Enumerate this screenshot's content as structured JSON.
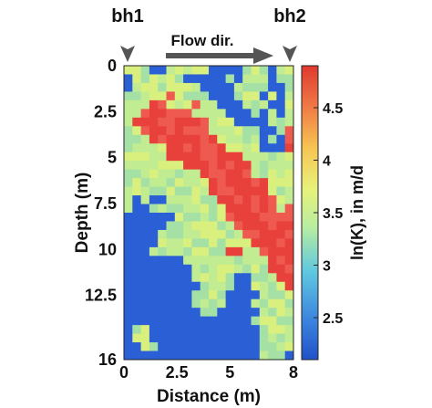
{
  "chart_data": {
    "type": "heatmap",
    "title": "",
    "xlabel": "Distance (m)",
    "ylabel": "Depth (m)",
    "colorbar_label": "ln(K), in m/d",
    "xlim": [
      0,
      8
    ],
    "ylim": [
      16,
      0
    ],
    "x_ticks": [
      {
        "value": 0,
        "label": "0"
      },
      {
        "value": 2.5,
        "label": "2.5"
      },
      {
        "value": 5,
        "label": "5"
      },
      {
        "value": 8,
        "label": "8"
      }
    ],
    "y_ticks": [
      {
        "value": 0,
        "label": "0"
      },
      {
        "value": 2.5,
        "label": "2.5"
      },
      {
        "value": 5,
        "label": "5"
      },
      {
        "value": 7.5,
        "label": "7.5"
      },
      {
        "value": 10,
        "label": "10"
      },
      {
        "value": 12.5,
        "label": "12.5"
      },
      {
        "value": 16,
        "label": "16"
      }
    ],
    "colorbar_range": [
      2.1,
      4.9
    ],
    "colorbar_ticks": [
      {
        "value": 2.5,
        "label": "2.5"
      },
      {
        "value": 3,
        "label": "3"
      },
      {
        "value": 3.5,
        "label": "3.5"
      },
      {
        "value": 4,
        "label": "4"
      },
      {
        "value": 4.5,
        "label": "4.5"
      }
    ],
    "colormap": [
      "#2151c9",
      "#3d86df",
      "#5fc8e0",
      "#b8eda0",
      "#e7f27a",
      "#f7c552",
      "#f07a45",
      "#e0392f"
    ],
    "grid_cells": {
      "x": 20,
      "y": 34
    },
    "value_levels": [
      2.35,
      3.1,
      3.2,
      3.3,
      4.6,
      4.75
    ],
    "level_colors": [
      "#2a5fd6",
      "#a5e1a5",
      "#c2ec91",
      "#d9ef7e",
      "#ee5a50",
      "#e8413c"
    ],
    "field": [
      "3 3 1 0 0 2 3 2 3 3 0 0 0 0 1 3 1 0 2 3",
      "0 3 1 3 2 3 1 0 0 0 0 0 1 0 2 2 2 0 1 1",
      "0 2 3 3 1 3 3 3 2 0 0 0 0 2 1 1 1 0 0 1",
      "1 1 2 3 3 4 3 1 1 1 0 0 0 1 3 3 0 3 0 2",
      "2 2 2 5 4 3 2 3 4 2 2 0 0 0 2 1 2 0 0 3",
      "2 2 4 5 5 4 4 4 2 2 2 2 0 0 0 1 0 2 0 2",
      "2 5 5 5 4 4 5 5 5 4 2 3 3 0 0 0 0 2 1 2",
      "1 3 4 5 5 4 5 4 4 4 2 2 2 3 1 1 0 0 1 4",
      "1 1 2 5 4 5 5 5 5 4 5 3 2 2 1 2 0 1 0 4",
      "1 2 2 2 3 5 5 4 5 4 4 5 3 3 2 3 0 0 0 5",
      "3 3 3 2 2 5 5 5 5 4 4 5 5 5 2 2 2 1 2 3",
      "2 2 2 2 3 3 3 5 5 5 4 5 4 5 5 2 1 2 2 2",
      "1 1 2 3 2 2 1 2 2 5 4 4 5 5 4 2 1 3 2 3",
      "1 3 1 2 2 1 3 2 2 3 5 4 5 5 5 4 5 3 3 3",
      "2 3 2 1 1 3 1 1 3 2 5 4 4 5 5 5 5 3 1 2",
      "2 0 2 0 0 2 2 2 3 1 1 5 5 4 5 4 5 4 3 2",
      "2 0 0 1 2 1 1 2 2 3 1 3 5 5 5 4 5 4 2 4",
      "0 0 0 0 0 0 3 1 1 2 1 3 4 5 5 5 4 4 4 4",
      "0 0 0 0 0 1 1 2 3 3 3 1 2 4 5 5 5 4 5 5",
      "0 0 0 0 2 1 1 2 2 3 3 3 1 2 4 4 5 5 5 4",
      "0 0 0 0 3 2 2 3 1 1 3 1 3 3 3 5 5 5 4 5",
      "0 0 0 2 1 2 2 1 3 3 1 1 5 5 2 2 4 5 5 5",
      "0 0 0 0 0 0 0 2 2 2 2 2 2 1 2 2 2 5 4 5",
      "0 0 0 0 0 0 0 0 2 1 2 3 3 2 1 3 1 5 5 4",
      "0 0 0 0 0 0 0 0 2 3 2 3 1 0 0 1 1 2 5 5",
      "0 0 0 0 0 0 0 0 0 1 2 2 1 0 0 3 2 1 3 5",
      "0 0 0 0 0 0 0 0 1 1 3 1 0 0 0 0 2 1 1 3",
      "0 0 0 0 0 0 0 0 1 2 1 2 0 0 0 2 1 3 3 1",
      "0 0 0 0 0 0 0 0 0 1 1 0 0 0 0 0 2 1 3 2",
      "0 0 0 0 0 0 0 0 0 0 0 0 0 0 0 1 3 3 1 1",
      "0 1 3 0 0 0 0 0 0 0 0 0 0 0 0 0 1 3 3 2",
      "0 3 3 0 0 0 0 0 0 0 0 0 0 0 0 0 1 2 1 2",
      "0 0 3 1 0 0 0 0 0 0 0 0 0 0 0 0 1 1 2 3",
      "0 0 0 0 0 0 0 0 0 0 0 0 0 0 0 0 2 1 1 0"
    ],
    "annotations": {
      "borehole_left": "bh1",
      "borehole_right": "bh2",
      "flow_label": "Flow dir."
    }
  }
}
